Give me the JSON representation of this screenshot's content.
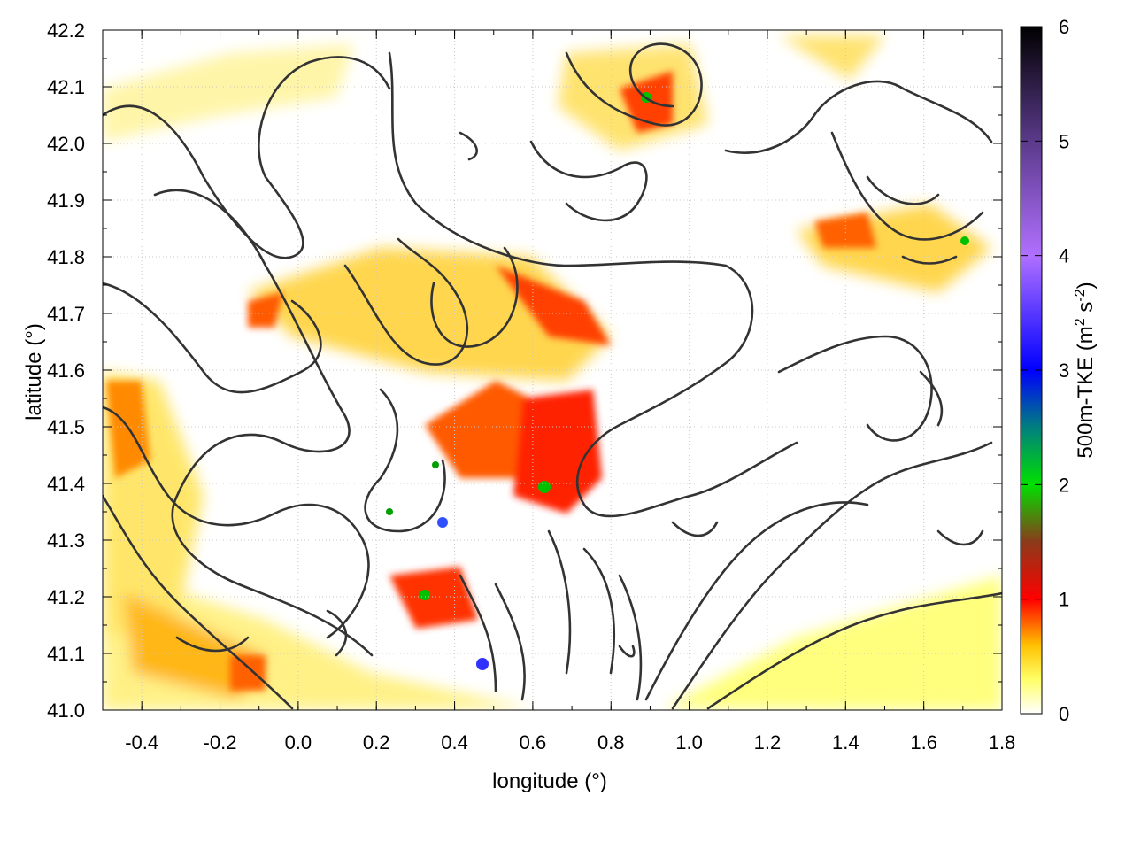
{
  "chart_data": {
    "type": "heatmap",
    "title": "",
    "xlabel": "longitude (°)",
    "ylabel": "latitude (°)",
    "xlim": [
      -0.5,
      1.8
    ],
    "ylim": [
      41.0,
      42.2
    ],
    "x_ticks": [
      "-0.4",
      "-0.2",
      "0.0",
      "0.2",
      "0.4",
      "0.6",
      "0.8",
      "1.0",
      "1.2",
      "1.4",
      "1.6",
      "1.8"
    ],
    "y_ticks": [
      "41.0",
      "41.1",
      "41.2",
      "41.3",
      "41.4",
      "41.5",
      "41.6",
      "41.7",
      "41.8",
      "41.9",
      "42.0",
      "42.1",
      "42.2"
    ],
    "grid": true,
    "colorbar": {
      "label": "500m-TKE (m",
      "label_sup1": "2",
      "label_mid": " s",
      "label_sup2": "-2",
      "label_end": ")",
      "range": [
        0,
        6
      ],
      "ticks": [
        "0",
        "1",
        "2",
        "3",
        "4",
        "5",
        "6"
      ],
      "stops": [
        {
          "value": 0.0,
          "color": "#ffffff"
        },
        {
          "value": 0.3,
          "color": "#ffff66"
        },
        {
          "value": 0.6,
          "color": "#ffc000"
        },
        {
          "value": 1.0,
          "color": "#ff0000"
        },
        {
          "value": 1.5,
          "color": "#8b3a1a"
        },
        {
          "value": 2.0,
          "color": "#00e000"
        },
        {
          "value": 2.5,
          "color": "#007f7f"
        },
        {
          "value": 3.0,
          "color": "#0000ff"
        },
        {
          "value": 4.0,
          "color": "#b070ff"
        },
        {
          "value": 5.0,
          "color": "#5a3a8a"
        },
        {
          "value": 6.0,
          "color": "#000000"
        }
      ]
    },
    "hotspots": [
      {
        "lon": 0.45,
        "lat": 41.48,
        "tke": 1.3
      },
      {
        "lon": 0.62,
        "lat": 41.42,
        "tke": 1.8
      },
      {
        "lon": 0.35,
        "lat": 41.2,
        "tke": 1.6
      },
      {
        "lon": 0.9,
        "lat": 42.08,
        "tke": 2.0
      },
      {
        "lon": 1.7,
        "lat": 41.82,
        "tke": 2.0
      },
      {
        "lon": 0.47,
        "lat": 41.08,
        "tke": 3.2
      },
      {
        "lon": 0.37,
        "lat": 41.32,
        "tke": 3.0
      },
      {
        "lon": -0.08,
        "lat": 41.7,
        "tke": 1.2
      }
    ],
    "contour_line_color": "#333333"
  }
}
